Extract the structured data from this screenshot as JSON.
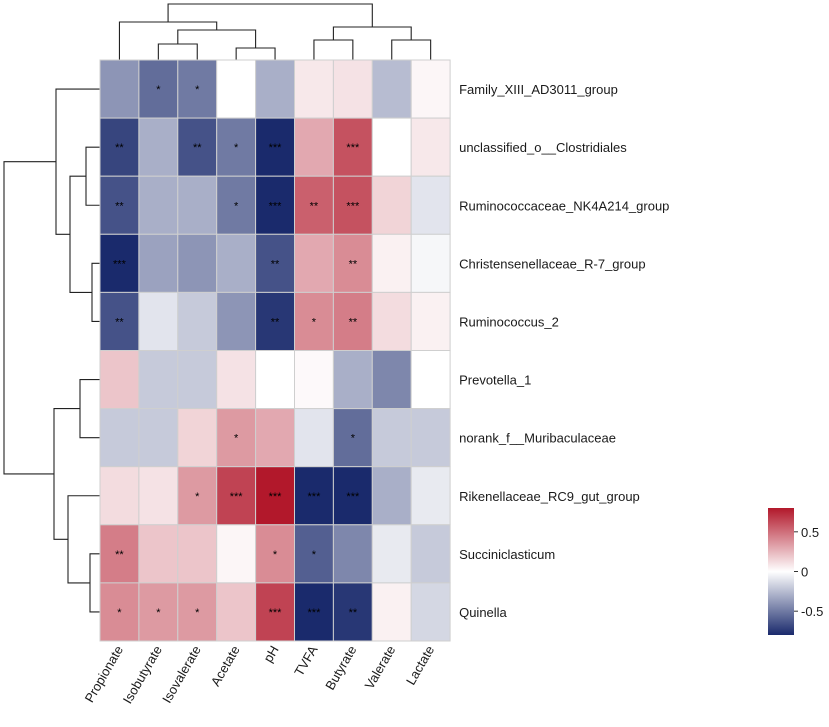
{
  "chart_data": {
    "type": "heatmap",
    "title": "",
    "rows": [
      "Family_XIII_AD3011_group",
      "unclassified_o__Clostridiales",
      "Ruminococcaceae_NK4A214_group",
      "Christensenellaceae_R-7_group",
      "Ruminococcus_2",
      "Prevotella_1",
      "norank_f__Muribaculaceae",
      "Rikenellaceae_RC9_gut_group",
      "Succiniclasticum",
      "Quinella"
    ],
    "columns": [
      "Propionate",
      "Isobutyrate",
      "Isovalerate",
      "Acetate",
      "pH",
      "TVFA",
      "Butyrate",
      "Valerate",
      "Lactate"
    ],
    "values": [
      [
        -0.4,
        -0.55,
        -0.5,
        0.0,
        -0.3,
        0.08,
        0.1,
        -0.25,
        0.03
      ],
      [
        -0.7,
        -0.3,
        -0.65,
        -0.5,
        -0.85,
        0.3,
        0.6,
        0.0,
        0.08
      ],
      [
        -0.65,
        -0.3,
        -0.3,
        -0.5,
        -0.85,
        0.55,
        0.6,
        0.15,
        -0.1
      ],
      [
        -0.85,
        -0.35,
        -0.4,
        -0.3,
        -0.65,
        0.3,
        0.4,
        0.05,
        -0.03
      ],
      [
        -0.65,
        -0.1,
        -0.2,
        -0.4,
        -0.75,
        0.4,
        0.45,
        0.12,
        0.05
      ],
      [
        0.2,
        -0.2,
        -0.2,
        0.1,
        0.0,
        0.02,
        -0.3,
        -0.45,
        0.0
      ],
      [
        -0.2,
        -0.2,
        0.15,
        0.35,
        0.3,
        -0.1,
        -0.55,
        -0.2,
        -0.2
      ],
      [
        0.12,
        0.1,
        0.35,
        0.65,
        0.85,
        -0.85,
        -0.85,
        -0.3,
        -0.08
      ],
      [
        0.45,
        0.2,
        0.2,
        0.03,
        0.4,
        -0.6,
        -0.45,
        -0.08,
        -0.2
      ],
      [
        0.4,
        0.35,
        0.35,
        0.2,
        0.65,
        -0.85,
        -0.75,
        0.05,
        -0.15
      ]
    ],
    "significance": [
      [
        "",
        "*",
        "*",
        "",
        "",
        "",
        "",
        "",
        ""
      ],
      [
        "**",
        "",
        "**",
        "*",
        "***",
        "",
        "***",
        "",
        ""
      ],
      [
        "**",
        "",
        "",
        "*",
        "***",
        "**",
        "***",
        "",
        ""
      ],
      [
        "***",
        "",
        "",
        "",
        "**",
        "",
        "**",
        "",
        ""
      ],
      [
        "**",
        "",
        "",
        "",
        "**",
        "*",
        "**",
        "",
        ""
      ],
      [
        "",
        "",
        "",
        "",
        "",
        "",
        "",
        "",
        ""
      ],
      [
        "",
        "",
        "",
        "*",
        "",
        "",
        "*",
        "",
        ""
      ],
      [
        "",
        "",
        "*",
        "***",
        "***",
        "***",
        "***",
        "",
        ""
      ],
      [
        "**",
        "",
        "",
        "",
        "*",
        "*",
        "",
        "",
        ""
      ],
      [
        "*",
        "*",
        "*",
        "",
        "***",
        "***",
        "**",
        "",
        ""
      ]
    ],
    "color_scale": {
      "range": [
        -0.8,
        0.8
      ],
      "low": "#1a2a6c",
      "mid": "#ffffff",
      "high": "#b2182b",
      "ticks": [
        0.5,
        0,
        -0.5
      ],
      "tick_labels": [
        "0.5",
        "0",
        "-0.5"
      ]
    },
    "legend_position": "right",
    "row_dendrogram": true,
    "column_dendrogram": true
  }
}
